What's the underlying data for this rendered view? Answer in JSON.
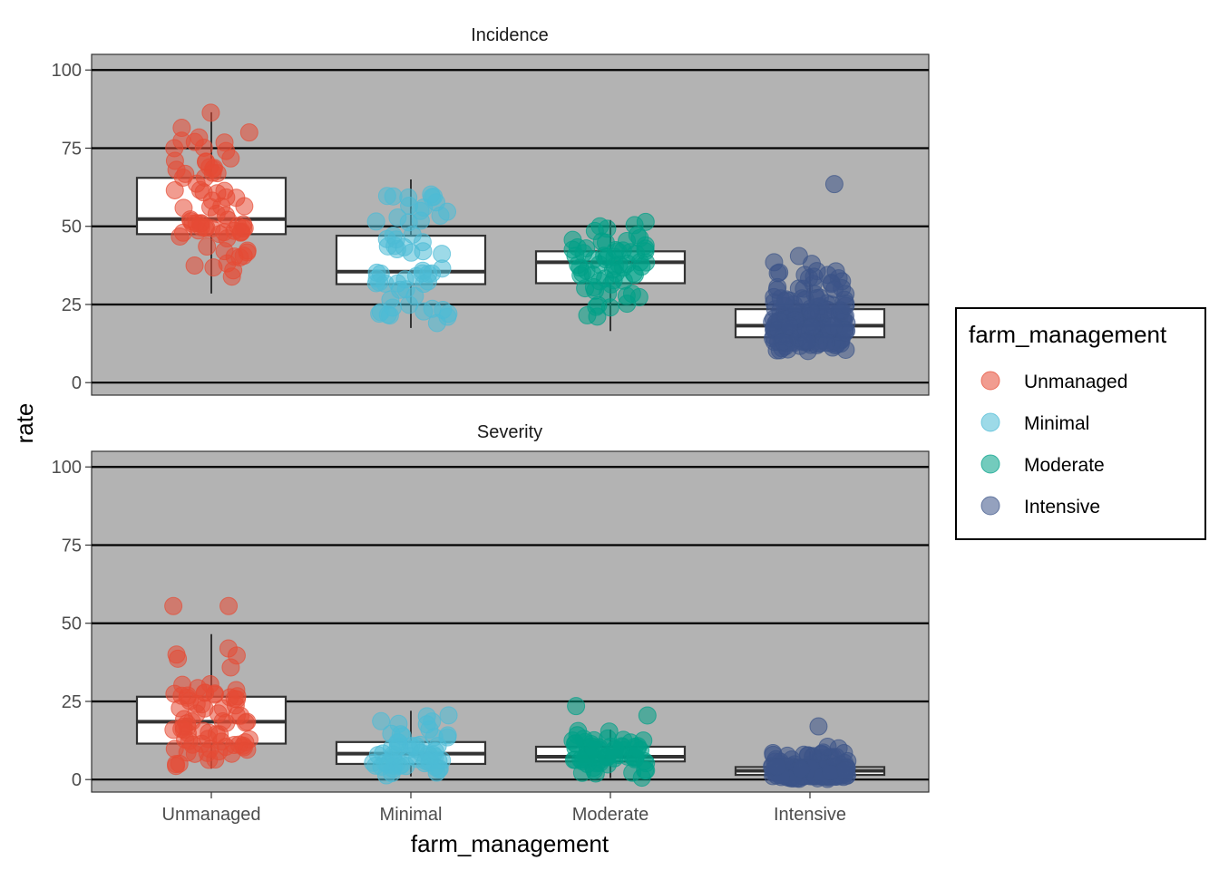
{
  "chart_data": {
    "type": "boxplot-jitter",
    "xlabel": "farm_management",
    "ylabel": "rate",
    "categories": [
      "Unmanaged",
      "Minimal",
      "Moderate",
      "Intensive"
    ],
    "colors": {
      "Unmanaged": "#E64B35",
      "Minimal": "#4DBBD5",
      "Moderate": "#00A087",
      "Intensive": "#3C5488"
    },
    "panel_background": "#b3b3b3",
    "gridline_color": "#000000",
    "ylim": [
      -4,
      105
    ],
    "y_ticks": [
      0,
      25,
      50,
      75,
      100
    ],
    "legend": {
      "title": "farm_management",
      "position": "right",
      "entries": [
        "Unmanaged",
        "Minimal",
        "Moderate",
        "Intensive"
      ]
    },
    "panels": [
      {
        "title": "Incidence",
        "boxes": [
          {
            "category": "Unmanaged",
            "min": 28.5,
            "q1": 47.5,
            "median": 52.3,
            "q3": 65.5,
            "max": 86.5,
            "n": 75,
            "outliers": []
          },
          {
            "category": "Minimal",
            "min": 17.5,
            "q1": 31.5,
            "median": 35.5,
            "q3": 47.0,
            "max": 65.0,
            "n": 60,
            "outliers": []
          },
          {
            "category": "Moderate",
            "min": 16.5,
            "q1": 31.8,
            "median": 38.5,
            "q3": 42.0,
            "max": 52.0,
            "n": 65,
            "outliers": []
          },
          {
            "category": "Intensive",
            "min": 10.0,
            "q1": 14.5,
            "median": 18.2,
            "q3": 23.5,
            "max": 36.5,
            "n": 180,
            "outliers": [
              63.5,
              40.5,
              38.5,
              38.0
            ]
          }
        ]
      },
      {
        "title": "Severity",
        "boxes": [
          {
            "category": "Unmanaged",
            "min": 3.5,
            "q1": 11.5,
            "median": 18.5,
            "q3": 26.5,
            "max": 46.5,
            "n": 75,
            "outliers": [
              55.5,
              55.5
            ]
          },
          {
            "category": "Minimal",
            "min": 1.0,
            "q1": 5.0,
            "median": 8.3,
            "q3": 12.0,
            "max": 22.0,
            "n": 60,
            "outliers": []
          },
          {
            "category": "Moderate",
            "min": 0.5,
            "q1": 5.8,
            "median": 7.3,
            "q3": 10.5,
            "max": 16.0,
            "n": 65,
            "outliers": [
              23.5,
              20.5
            ]
          },
          {
            "category": "Intensive",
            "min": 0.0,
            "q1": 1.5,
            "median": 2.8,
            "q3": 4.0,
            "max": 9.0,
            "n": 180,
            "outliers": [
              17.0,
              10.5,
              10.0
            ]
          }
        ]
      }
    ]
  }
}
